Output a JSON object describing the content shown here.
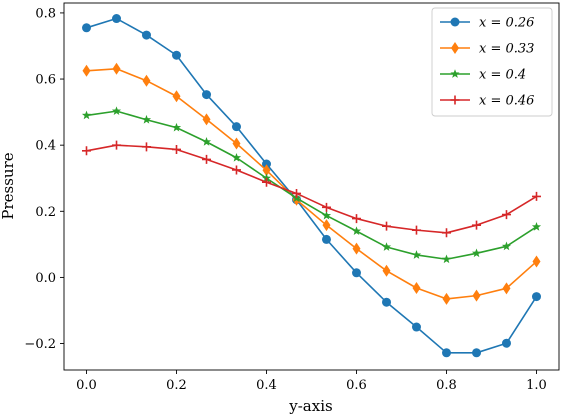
{
  "chart_data": {
    "type": "line",
    "xlabel": "y-axis",
    "ylabel": "Pressure",
    "xlim": [
      -0.05,
      1.05
    ],
    "ylim": [
      -0.28,
      0.83
    ],
    "xticks": [
      0.0,
      0.2,
      0.4,
      0.6,
      0.8,
      1.0
    ],
    "xtick_labels": [
      "0.0",
      "0.2",
      "0.4",
      "0.6",
      "0.8",
      "1.0"
    ],
    "yticks": [
      -0.2,
      0.0,
      0.2,
      0.4,
      0.6,
      0.8
    ],
    "ytick_labels": [
      "−0.2",
      "0.0",
      "0.2",
      "0.4",
      "0.6",
      "0.8"
    ],
    "legend_position": "top-right",
    "grid": false,
    "x": [
      0.0,
      0.0667,
      0.1333,
      0.2,
      0.2667,
      0.3333,
      0.4,
      0.4667,
      0.5333,
      0.6,
      0.6667,
      0.7333,
      0.8,
      0.8667,
      0.9333,
      1.0
    ],
    "series": [
      {
        "name": "x = 0.26",
        "color": "#1f77b4",
        "marker": "circle",
        "values": [
          0.755,
          0.783,
          0.733,
          0.672,
          0.553,
          0.456,
          0.343,
          0.235,
          0.115,
          0.014,
          -0.075,
          -0.15,
          -0.228,
          -0.228,
          -0.199,
          -0.058
        ]
      },
      {
        "name": "x = 0.33",
        "color": "#ff7f0e",
        "marker": "diamond",
        "values": [
          0.625,
          0.631,
          0.595,
          0.548,
          0.478,
          0.405,
          0.324,
          0.235,
          0.158,
          0.087,
          0.02,
          -0.032,
          -0.065,
          -0.055,
          -0.033,
          0.048
        ]
      },
      {
        "name": "x = 0.4",
        "color": "#2ca02c",
        "marker": "star",
        "values": [
          0.49,
          0.503,
          0.477,
          0.453,
          0.41,
          0.362,
          0.3,
          0.24,
          0.187,
          0.14,
          0.092,
          0.068,
          0.055,
          0.073,
          0.094,
          0.153
        ]
      },
      {
        "name": "x = 0.46",
        "color": "#d62728",
        "marker": "plus",
        "values": [
          0.383,
          0.4,
          0.395,
          0.387,
          0.357,
          0.325,
          0.288,
          0.254,
          0.212,
          0.178,
          0.155,
          0.143,
          0.135,
          0.158,
          0.19,
          0.245
        ]
      }
    ]
  }
}
